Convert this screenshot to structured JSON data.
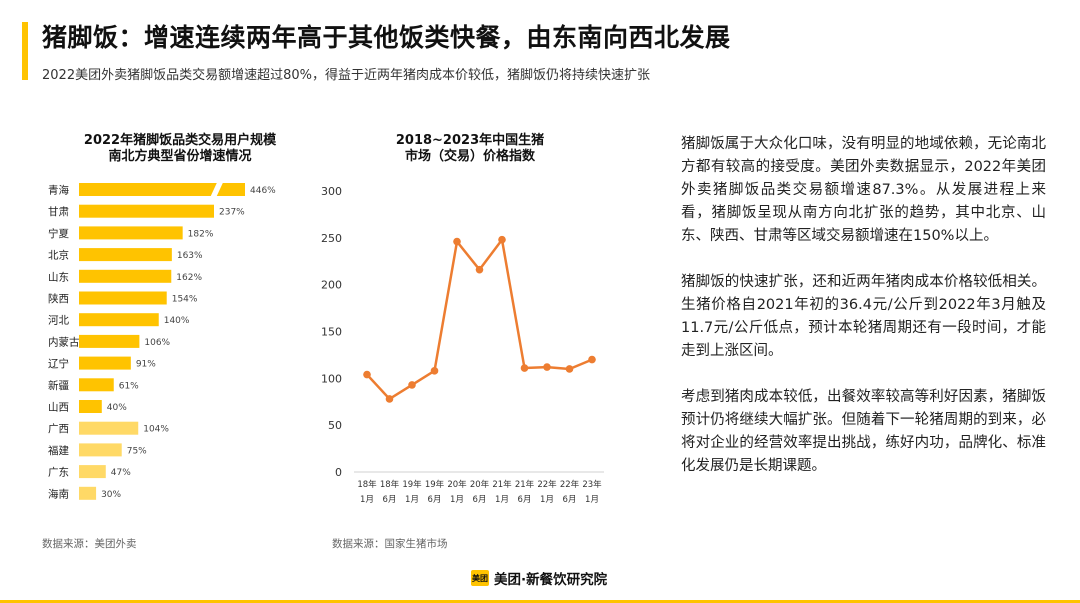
{
  "header": {
    "title": "猪脚饭：增速连续两年高于其他饭类快餐，由东南向西北发展",
    "subtitle": "2022美团外卖猪脚饭品类交易额增速超过80%，得益于近两年猪肉成本价较低，猪脚饭仍将持续快速扩张"
  },
  "colors": {
    "accent": "#FFC300",
    "bar_primary": "#FFC300",
    "bar_secondary": "#FFD966",
    "line": "#ED7D31"
  },
  "chart_data": [
    {
      "type": "bar",
      "orientation": "horizontal",
      "title_lines": [
        "2022年猪脚饭品类交易用户规模",
        "南北方典型省份增速情况"
      ],
      "categories": [
        "青海",
        "甘肃",
        "宁夏",
        "北京",
        "山东",
        "陕西",
        "河北",
        "内蒙古",
        "辽宁",
        "新疆",
        "山西",
        "广西",
        "福建",
        "广东",
        "海南"
      ],
      "values": [
        446,
        237,
        182,
        163,
        162,
        154,
        140,
        106,
        91,
        61,
        40,
        104,
        75,
        47,
        30
      ],
      "value_labels": [
        "446%",
        "237%",
        "182%",
        "163%",
        "162%",
        "154%",
        "140%",
        "106%",
        "91%",
        "61%",
        "40%",
        "104%",
        "75%",
        "47%",
        "30%"
      ],
      "groups": [
        "north",
        "north",
        "north",
        "north",
        "north",
        "north",
        "north",
        "north",
        "north",
        "north",
        "north",
        "south",
        "south",
        "south",
        "south"
      ],
      "axis_break": {
        "category": "青海"
      },
      "source": "数据来源：美团外卖"
    },
    {
      "type": "line",
      "title_lines": [
        "2018~2023年中国生猪",
        "市场（交易）价格指数"
      ],
      "x_labels": [
        [
          "18年",
          "1月"
        ],
        [
          "18年",
          "6月"
        ],
        [
          "19年",
          "1月"
        ],
        [
          "19年",
          "6月"
        ],
        [
          "20年",
          "1月"
        ],
        [
          "20年",
          "6月"
        ],
        [
          "21年",
          "1月"
        ],
        [
          "21年",
          "6月"
        ],
        [
          "22年",
          "1月"
        ],
        [
          "22年",
          "6月"
        ],
        [
          "23年",
          "1月"
        ]
      ],
      "values": [
        104,
        78,
        93,
        108,
        246,
        216,
        248,
        111,
        112,
        110,
        120
      ],
      "y_ticks": [
        0,
        50,
        100,
        150,
        200,
        250,
        300
      ],
      "ylim": [
        0,
        300
      ],
      "grid": false,
      "source": "数据来源：国家生猪市场"
    }
  ],
  "right_text": [
    "猪脚饭属于大众化口味，没有明显的地域依赖，无论南北方都有较高的接受度。美团外卖数据显示，2022年美团外卖猪脚饭品类交易额增速87.3%。从发展进程上来看，猪脚饭呈现从南方向北扩张的趋势，其中北京、山东、陕西、甘肃等区域交易额增速在150%以上。",
    "猪脚饭的快速扩张，还和近两年猪肉成本价格较低相关。生猪价格自2021年初的36.4元/公斤到2022年3月触及11.7元/公斤低点，预计本轮猪周期还有一段时间，才能走到上涨区间。",
    "考虑到猪肉成本较低，出餐效率较高等利好因素，猪脚饭预计仍将继续大幅扩张。但随着下一轮猪周期的到来，必将对企业的经营效率提出挑战，练好内功，品牌化、标准化发展仍是长期课题。"
  ],
  "brand": {
    "badge": "美团",
    "name": "美团·新餐饮研究院"
  }
}
